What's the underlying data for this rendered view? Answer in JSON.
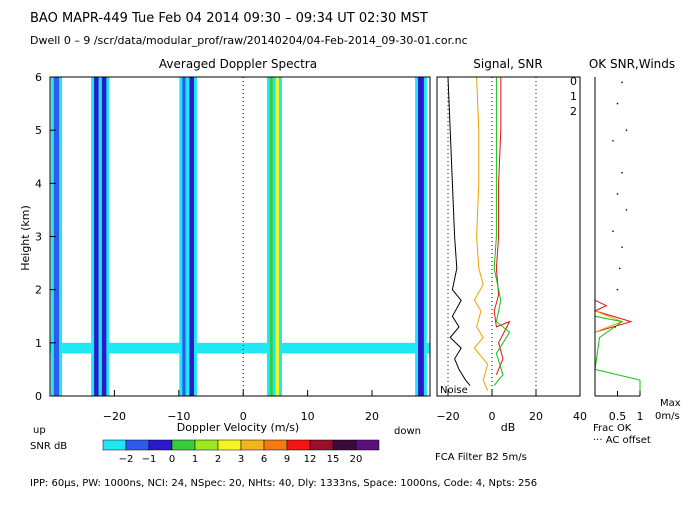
{
  "header": {
    "line1": "BAO   MAPR-449  Tue Feb 04 2014 09:30 – 09:34 UT 02:30 MST",
    "line2": "Dwell  0 –  9   /scr/data/modular_prof/raw/20140204/04-Feb-2014_09-30-01.cor.nc"
  },
  "footer": {
    "params": "IPP:  60µs,  PW: 1000ns,  NCI:  24,  NSpec: 20, NHts: 40,  Dly: 1333ns,  Space: 1000ns,  Code: 4,  Npts: 256",
    "filter": "FCA Filter B2   5m/s"
  },
  "colors": {
    "levels": [
      "#1fe8f4",
      "#2f5af0",
      "#2a1acb",
      "#3acc3a",
      "#9ee81f",
      "#f4f41f",
      "#f4b41f",
      "#f47a14",
      "#f41414",
      "#9a0f2a",
      "#3a0a3a",
      "#5a107a"
    ],
    "snr_lines": [
      "#000000",
      "#f0a000",
      "#e81010",
      "#10c010"
    ]
  },
  "chart_data": [
    {
      "type": "heatmap",
      "title": "Averaged Doppler Spectra",
      "xlabel": "Doppler Velocity (m/s)",
      "ylabel": "Height (km)",
      "xlim": [
        -30,
        29
      ],
      "ylim": [
        0,
        6
      ],
      "x_ticks": [
        -20,
        -10,
        0,
        10,
        20
      ],
      "y_ticks": [
        0,
        1,
        2,
        3,
        4,
        5,
        6
      ],
      "left_label": "up",
      "right_label": "down",
      "zero_line": 0,
      "colorbar": {
        "label": "SNR dB",
        "ticks": [
          "-2",
          "-1",
          "0",
          "1",
          "2",
          "3",
          "6",
          "9",
          "12",
          "15",
          "20"
        ]
      },
      "features": {
        "baseline_band_km": [
          0.8,
          1.0
        ],
        "vertical_bands": [
          {
            "velocity": -29.0,
            "width": 0.8,
            "level": 1
          },
          {
            "velocity": -22.8,
            "width": 0.7,
            "level": 2
          },
          {
            "velocity": -21.6,
            "width": 0.7,
            "level": 2
          },
          {
            "velocity": -9.2,
            "width": 0.5,
            "level": 1
          },
          {
            "velocity": -8.0,
            "width": 0.7,
            "level": 2
          },
          {
            "velocity": 4.6,
            "width": 0.9,
            "level": 3
          },
          {
            "velocity": 5.3,
            "width": 0.5,
            "level": 5
          },
          {
            "velocity": 27.6,
            "width": 0.9,
            "level": 2
          }
        ]
      }
    },
    {
      "type": "line",
      "title": "Signal, SNR",
      "xlabel": "dB",
      "xlim": [
        -25,
        40
      ],
      "x_ticks": [
        -20,
        0,
        20,
        40
      ],
      "ylim": [
        0,
        6
      ],
      "noise_label": "Noise",
      "series": [
        {
          "points": [
            [
              -20,
              6.0
            ],
            [
              -19,
              5.0
            ],
            [
              -18,
              4.0
            ],
            [
              -17,
              3.0
            ],
            [
              -16,
              2.4
            ],
            [
              -18,
              2.0
            ],
            [
              -14,
              1.8
            ],
            [
              -18,
              1.5
            ],
            [
              -15,
              1.3
            ],
            [
              -19,
              1.1
            ],
            [
              -14,
              0.9
            ],
            [
              -17,
              0.7
            ],
            [
              -15,
              0.5
            ],
            [
              -12,
              0.3
            ],
            [
              -10,
              0.2
            ]
          ]
        },
        {
          "points": [
            [
              -7,
              6.0
            ],
            [
              -6,
              5.0
            ],
            [
              -6,
              4.0
            ],
            [
              -7,
              3.0
            ],
            [
              -6,
              2.4
            ],
            [
              -4,
              2.1
            ],
            [
              -8,
              1.8
            ],
            [
              -5,
              1.6
            ],
            [
              -7,
              1.3
            ],
            [
              -4,
              1.1
            ],
            [
              -8,
              0.9
            ],
            [
              -2,
              0.6
            ],
            [
              -4,
              0.3
            ],
            [
              -2,
              0.1
            ]
          ]
        },
        {
          "points": [
            [
              4,
              6.0
            ],
            [
              4,
              5.0
            ],
            [
              3,
              4.0
            ],
            [
              3,
              3.0
            ],
            [
              2,
              2.4
            ],
            [
              3,
              1.9
            ],
            [
              1,
              1.6
            ],
            [
              2,
              1.3
            ],
            [
              8,
              1.4
            ],
            [
              3,
              1.0
            ],
            [
              5,
              0.7
            ],
            [
              2,
              0.4
            ]
          ]
        },
        {
          "points": [
            [
              2,
              6.0
            ],
            [
              2,
              5.0
            ],
            [
              2,
              4.0
            ],
            [
              2,
              3.0
            ],
            [
              1,
              2.4
            ],
            [
              4,
              1.8
            ],
            [
              2,
              1.4
            ],
            [
              8,
              1.2
            ],
            [
              2,
              0.8
            ],
            [
              5,
              0.4
            ],
            [
              1,
              0.2
            ]
          ]
        }
      ]
    },
    {
      "type": "line",
      "title": "OK SNR,Winds",
      "legend": [
        "0",
        "1",
        "2"
      ],
      "legend_colors": [
        "#e81010",
        "#f0a000",
        "#10c010"
      ],
      "xlim": [
        0,
        1
      ],
      "ylim": [
        0,
        6
      ],
      "x_ticks": [
        0.5,
        1
      ],
      "xlabel_lines": [
        "Frac OK",
        "··· AC offset"
      ],
      "max_label": [
        "Max",
        "0m/s"
      ],
      "series": [
        {
          "points": [
            [
              0.0,
              6.0
            ],
            [
              0.0,
              1.8
            ],
            [
              0.25,
              1.7
            ],
            [
              0.0,
              1.6
            ],
            [
              0.8,
              1.4
            ],
            [
              0.0,
              1.2
            ],
            [
              0.0,
              0.0
            ]
          ]
        },
        {
          "points": [
            [
              0.0,
              6.0
            ],
            [
              0.0,
              1.6
            ],
            [
              0.6,
              1.4
            ],
            [
              0.0,
              1.2
            ],
            [
              0.0,
              0.0
            ]
          ]
        },
        {
          "points": [
            [
              0.0,
              6.0
            ],
            [
              0.0,
              1.5
            ],
            [
              0.6,
              1.4
            ],
            [
              0.1,
              1.1
            ],
            [
              0.0,
              0.5
            ],
            [
              1.0,
              0.3
            ],
            [
              1.0,
              0.0
            ]
          ]
        }
      ],
      "dots": [
        [
          0.6,
          5.9
        ],
        [
          0.5,
          5.5
        ],
        [
          0.7,
          5.0
        ],
        [
          0.4,
          4.8
        ],
        [
          0.6,
          4.2
        ],
        [
          0.5,
          3.8
        ],
        [
          0.7,
          3.5
        ],
        [
          0.4,
          3.1
        ],
        [
          0.6,
          2.8
        ],
        [
          0.55,
          2.4
        ],
        [
          0.5,
          2.0
        ],
        [
          0.45,
          1.3
        ]
      ]
    }
  ]
}
